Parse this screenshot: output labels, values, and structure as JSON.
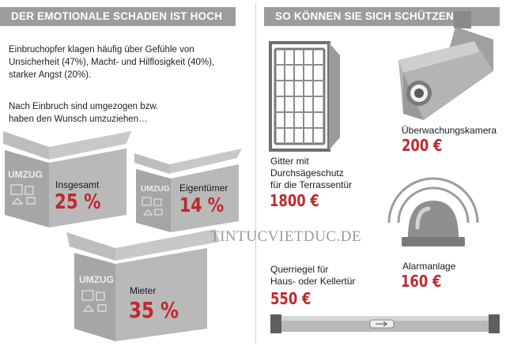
{
  "left": {
    "header": "DER EMOTIONALE SCHADEN IST HOCH",
    "intro_lines": [
      "Einbruchopfer klagen häufig über Gefühle von",
      "Unsicherheit (47%), Macht- und Hilflosigkeit (40%),",
      "starker Angst (20%)."
    ],
    "moved_lines": [
      "Nach Einbruch sind umgezogen bzw.",
      "haben den Wunsch umzuziehen…"
    ],
    "box_word": "UMZUG",
    "boxes": [
      {
        "label": "Insgesamt",
        "value": "25 %"
      },
      {
        "label": "Eigentümer",
        "value": "14 %"
      },
      {
        "label": "Mieter",
        "value": "35 %"
      }
    ]
  },
  "right": {
    "header": "SO KÖNNEN SIE SICH SCHÜTZEN",
    "items": [
      {
        "label_lines": [
          "Überwachungskamera"
        ],
        "price": "200 €",
        "icon": "camera-icon"
      },
      {
        "label_lines": [
          "Gitter mit",
          "Durchsägeschutz",
          "für die Terrassentür"
        ],
        "price": "1800 €",
        "icon": "window-grille-icon"
      },
      {
        "label_lines": [
          "Alarmanlage"
        ],
        "price": "160 €",
        "icon": "alarm-light-icon"
      },
      {
        "label_lines": [
          "Querriegel für",
          "Haus- oder Kellertür"
        ],
        "price": "550 €",
        "icon": "crossbar-lock-icon"
      }
    ]
  },
  "watermark": "TINTUCVIETDUC.DE",
  "colors": {
    "header_bg": "#9c9c9c",
    "accent_red": "#c0282e",
    "box_gray": "#a9a9a9"
  }
}
